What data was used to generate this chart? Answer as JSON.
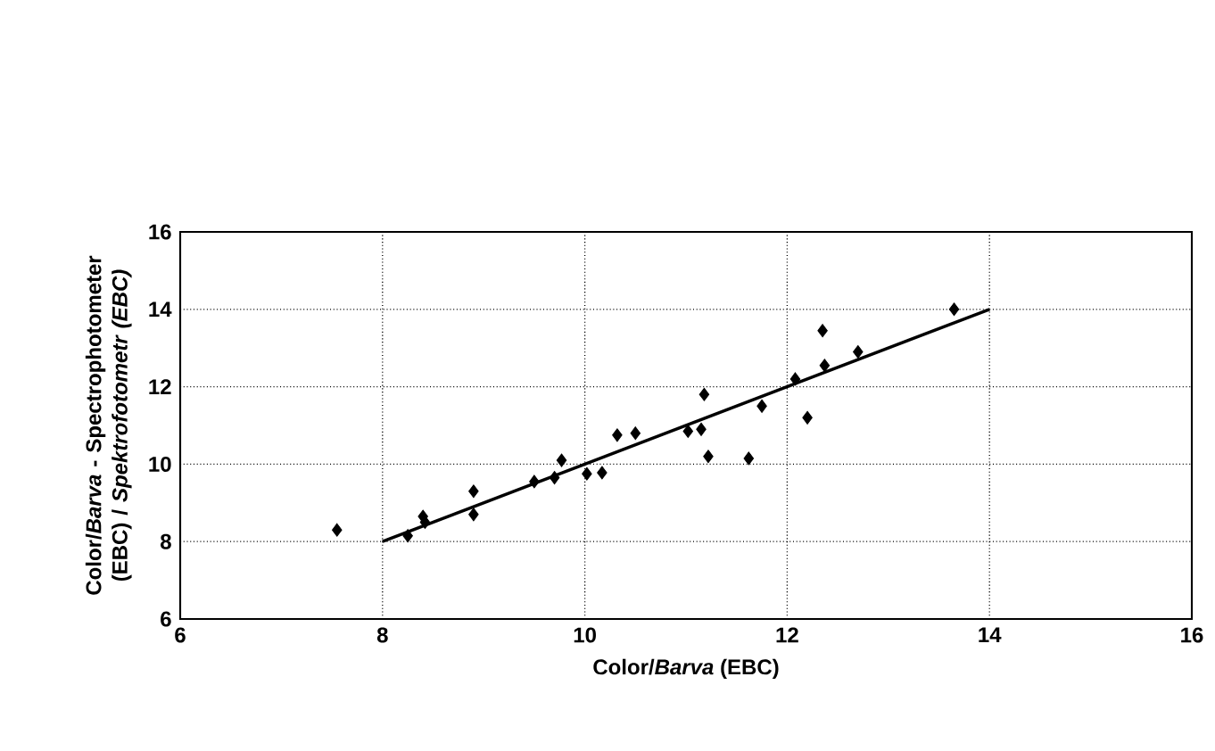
{
  "chart_data": {
    "type": "scatter",
    "xlabel": "Color/*Barva* (EBC)",
    "ylabel": "Color/*Barva* - Spectrophotometer (EBC) / *Spektrofotometr (EBC)*",
    "xlim": [
      6,
      16
    ],
    "ylim": [
      6,
      16
    ],
    "xticks": [
      6,
      8,
      10,
      12,
      14,
      16
    ],
    "yticks": [
      6,
      8,
      10,
      12,
      14,
      16
    ],
    "grid": true,
    "marker": "diamond",
    "series": [
      {
        "color": "#000000",
        "x": [
          7.55,
          8.25,
          8.4,
          8.42,
          8.9,
          8.9,
          9.5,
          9.7,
          9.77,
          10.02,
          10.17,
          10.32,
          10.5,
          11.02,
          11.15,
          11.18,
          11.22,
          11.62,
          11.75,
          12.08,
          12.2,
          12.35,
          12.37,
          12.7,
          13.65
        ],
        "values": [
          8.3,
          8.15,
          8.65,
          8.5,
          9.3,
          8.7,
          9.55,
          9.65,
          10.1,
          9.75,
          9.78,
          10.75,
          10.8,
          10.85,
          10.9,
          11.8,
          10.2,
          10.15,
          11.5,
          12.2,
          11.2,
          13.45,
          12.55,
          12.9,
          14.0
        ]
      },
      {
        "type": "line",
        "marker": "none",
        "color": "#000000",
        "x": [
          8,
          14
        ],
        "values": [
          8,
          14
        ]
      }
    ]
  }
}
